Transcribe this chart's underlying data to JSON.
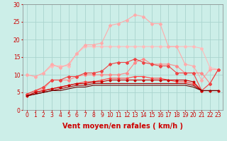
{
  "title": "",
  "xlabel": "Vent moyen/en rafales ( km/h )",
  "ylabel": "",
  "background_color": "#cceee8",
  "grid_color": "#aad4ce",
  "xlim": [
    -0.5,
    23.5
  ],
  "ylim": [
    0,
    30
  ],
  "yticks": [
    0,
    5,
    10,
    15,
    20,
    25,
    30
  ],
  "xticks": [
    0,
    1,
    2,
    3,
    4,
    5,
    6,
    7,
    8,
    9,
    10,
    11,
    12,
    13,
    14,
    15,
    16,
    17,
    18,
    19,
    20,
    21,
    22,
    23
  ],
  "series": [
    {
      "color": "#ffbbbb",
      "marker": "D",
      "markersize": 2.0,
      "linewidth": 0.8,
      "data": [
        [
          0,
          10.0
        ],
        [
          1,
          9.5
        ],
        [
          2,
          10.5
        ],
        [
          3,
          12.5
        ],
        [
          4,
          12.5
        ],
        [
          5,
          12.5
        ],
        [
          6,
          16.0
        ],
        [
          7,
          18.0
        ],
        [
          8,
          18.0
        ],
        [
          9,
          18.0
        ],
        [
          10,
          18.0
        ],
        [
          11,
          18.0
        ],
        [
          12,
          18.0
        ],
        [
          13,
          18.0
        ],
        [
          14,
          18.0
        ],
        [
          15,
          18.0
        ],
        [
          16,
          18.0
        ],
        [
          17,
          18.0
        ],
        [
          18,
          18.0
        ],
        [
          19,
          18.0
        ],
        [
          20,
          18.0
        ],
        [
          21,
          17.5
        ],
        [
          22,
          12.0
        ],
        [
          23,
          11.5
        ]
      ]
    },
    {
      "color": "#ffaaaa",
      "marker": "D",
      "markersize": 2.0,
      "linewidth": 0.8,
      "data": [
        [
          0,
          10.0
        ],
        [
          1,
          9.5
        ],
        [
          2,
          10.5
        ],
        [
          3,
          13.0
        ],
        [
          4,
          12.0
        ],
        [
          5,
          13.0
        ],
        [
          6,
          16.0
        ],
        [
          7,
          18.5
        ],
        [
          8,
          18.5
        ],
        [
          9,
          19.0
        ],
        [
          10,
          24.0
        ],
        [
          11,
          24.5
        ],
        [
          12,
          25.5
        ],
        [
          13,
          27.0
        ],
        [
          14,
          26.5
        ],
        [
          15,
          24.5
        ],
        [
          16,
          24.5
        ],
        [
          17,
          18.0
        ],
        [
          18,
          18.0
        ],
        [
          19,
          13.0
        ],
        [
          20,
          12.5
        ],
        [
          21,
          8.5
        ],
        [
          22,
          11.5
        ],
        [
          23,
          11.5
        ]
      ]
    },
    {
      "color": "#ff8888",
      "marker": "D",
      "markersize": 2.0,
      "linewidth": 0.8,
      "data": [
        [
          0,
          4.5
        ],
        [
          1,
          5.5
        ],
        [
          2,
          6.0
        ],
        [
          3,
          8.5
        ],
        [
          4,
          8.5
        ],
        [
          5,
          8.5
        ],
        [
          6,
          9.5
        ],
        [
          7,
          10.0
        ],
        [
          8,
          10.0
        ],
        [
          9,
          10.0
        ],
        [
          10,
          10.0
        ],
        [
          11,
          10.0
        ],
        [
          12,
          10.5
        ],
        [
          13,
          13.5
        ],
        [
          14,
          14.5
        ],
        [
          15,
          13.0
        ],
        [
          16,
          13.0
        ],
        [
          17,
          13.0
        ],
        [
          18,
          12.5
        ],
        [
          19,
          10.5
        ],
        [
          20,
          10.5
        ],
        [
          21,
          10.5
        ],
        [
          22,
          7.5
        ],
        [
          23,
          11.5
        ]
      ]
    },
    {
      "color": "#ee4444",
      "marker": "D",
      "markersize": 2.0,
      "linewidth": 0.8,
      "data": [
        [
          0,
          4.5
        ],
        [
          1,
          5.5
        ],
        [
          2,
          6.5
        ],
        [
          3,
          8.5
        ],
        [
          4,
          8.5
        ],
        [
          5,
          9.5
        ],
        [
          6,
          9.5
        ],
        [
          7,
          10.5
        ],
        [
          8,
          10.5
        ],
        [
          9,
          11.0
        ],
        [
          10,
          13.0
        ],
        [
          11,
          13.5
        ],
        [
          12,
          13.5
        ],
        [
          13,
          14.5
        ],
        [
          14,
          13.5
        ],
        [
          15,
          13.0
        ],
        [
          16,
          12.5
        ],
        [
          17,
          12.5
        ],
        [
          18,
          10.5
        ],
        [
          19,
          10.5
        ],
        [
          20,
          10.5
        ],
        [
          21,
          5.5
        ],
        [
          22,
          7.5
        ],
        [
          23,
          11.5
        ]
      ]
    },
    {
      "color": "#ff4444",
      "marker": "D",
      "markersize": 1.5,
      "linewidth": 0.8,
      "data": [
        [
          0,
          4.0
        ],
        [
          1,
          5.0
        ],
        [
          2,
          5.5
        ],
        [
          3,
          6.0
        ],
        [
          4,
          6.5
        ],
        [
          5,
          7.0
        ],
        [
          6,
          7.5
        ],
        [
          7,
          8.0
        ],
        [
          8,
          8.0
        ],
        [
          9,
          8.5
        ],
        [
          10,
          9.0
        ],
        [
          11,
          9.0
        ],
        [
          12,
          9.0
        ],
        [
          13,
          9.5
        ],
        [
          14,
          9.5
        ],
        [
          15,
          9.0
        ],
        [
          16,
          9.0
        ],
        [
          17,
          8.5
        ],
        [
          18,
          8.0
        ],
        [
          19,
          8.0
        ],
        [
          20,
          7.5
        ],
        [
          21,
          5.5
        ],
        [
          22,
          5.5
        ],
        [
          23,
          5.5
        ]
      ]
    },
    {
      "color": "#cc0000",
      "marker": "D",
      "markersize": 1.5,
      "linewidth": 0.8,
      "data": [
        [
          0,
          4.0
        ],
        [
          1,
          5.0
        ],
        [
          2,
          5.5
        ],
        [
          3,
          6.0
        ],
        [
          4,
          6.5
        ],
        [
          5,
          7.0
        ],
        [
          6,
          7.5
        ],
        [
          7,
          7.5
        ],
        [
          8,
          8.0
        ],
        [
          9,
          8.0
        ],
        [
          10,
          8.5
        ],
        [
          11,
          8.5
        ],
        [
          12,
          8.5
        ],
        [
          13,
          8.5
        ],
        [
          14,
          8.5
        ],
        [
          15,
          8.5
        ],
        [
          16,
          8.5
        ],
        [
          17,
          8.5
        ],
        [
          18,
          8.5
        ],
        [
          19,
          8.5
        ],
        [
          20,
          8.0
        ],
        [
          21,
          5.5
        ],
        [
          22,
          5.5
        ],
        [
          23,
          5.5
        ]
      ]
    },
    {
      "color": "#aa0000",
      "marker": null,
      "markersize": 0,
      "linewidth": 0.8,
      "data": [
        [
          0,
          4.0
        ],
        [
          1,
          4.5
        ],
        [
          2,
          5.0
        ],
        [
          3,
          5.5
        ],
        [
          4,
          6.0
        ],
        [
          5,
          6.5
        ],
        [
          6,
          7.0
        ],
        [
          7,
          7.0
        ],
        [
          8,
          7.5
        ],
        [
          9,
          7.5
        ],
        [
          10,
          7.5
        ],
        [
          11,
          7.5
        ],
        [
          12,
          7.5
        ],
        [
          13,
          7.5
        ],
        [
          14,
          7.5
        ],
        [
          15,
          7.5
        ],
        [
          16,
          7.5
        ],
        [
          17,
          7.5
        ],
        [
          18,
          7.5
        ],
        [
          19,
          7.5
        ],
        [
          20,
          7.0
        ],
        [
          21,
          5.5
        ],
        [
          22,
          5.5
        ],
        [
          23,
          5.5
        ]
      ]
    },
    {
      "color": "#660000",
      "marker": null,
      "markersize": 0,
      "linewidth": 0.8,
      "data": [
        [
          0,
          4.0
        ],
        [
          1,
          4.5
        ],
        [
          2,
          5.0
        ],
        [
          3,
          5.5
        ],
        [
          4,
          5.5
        ],
        [
          5,
          6.0
        ],
        [
          6,
          6.5
        ],
        [
          7,
          6.5
        ],
        [
          8,
          7.0
        ],
        [
          9,
          7.0
        ],
        [
          10,
          7.0
        ],
        [
          11,
          7.0
        ],
        [
          12,
          7.0
        ],
        [
          13,
          7.0
        ],
        [
          14,
          7.0
        ],
        [
          15,
          7.0
        ],
        [
          16,
          7.0
        ],
        [
          17,
          7.0
        ],
        [
          18,
          7.0
        ],
        [
          19,
          7.0
        ],
        [
          20,
          6.5
        ],
        [
          21,
          5.5
        ],
        [
          22,
          5.5
        ],
        [
          23,
          5.5
        ]
      ]
    }
  ],
  "xlabel_color": "#cc0000",
  "xlabel_fontsize": 7,
  "tick_color": "#cc0000",
  "tick_fontsize": 5.5
}
